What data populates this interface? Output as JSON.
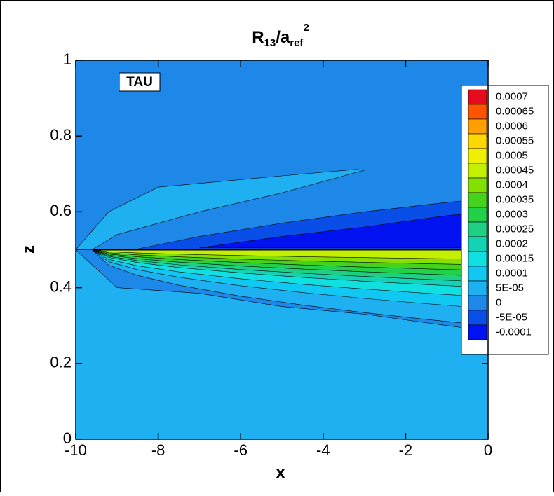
{
  "chart_data": {
    "type": "contour",
    "title": {
      "base": "R",
      "sub1": "13",
      "mid": "/a",
      "sub2": "ref",
      "sup": "2"
    },
    "annotation": "TAU",
    "x_label": "x",
    "y_label": "z",
    "xlim": [
      -10,
      0
    ],
    "xticks": [
      -10,
      -8,
      -6,
      -4,
      -2,
      0
    ],
    "ylim": [
      0,
      1
    ],
    "yticks": [
      0,
      0.2,
      0.4,
      0.6,
      0.8,
      1
    ],
    "levels": [
      {
        "value": 0.0007,
        "color": "#e60a1e"
      },
      {
        "value": 0.00065,
        "color": "#ff5500"
      },
      {
        "value": 0.0006,
        "color": "#ffa000"
      },
      {
        "value": 0.00055,
        "color": "#ffd800"
      },
      {
        "value": 0.0005,
        "color": "#eef000"
      },
      {
        "value": 0.00045,
        "color": "#c4f000"
      },
      {
        "value": 0.0004,
        "color": "#84e000"
      },
      {
        "value": 0.00035,
        "color": "#44d21c"
      },
      {
        "value": 0.0003,
        "color": "#22d04a"
      },
      {
        "value": 0.00025,
        "color": "#1ed084"
      },
      {
        "value": 0.0002,
        "color": "#14d2b4"
      },
      {
        "value": 0.00015,
        "color": "#12e0e0"
      },
      {
        "value": 0.0001,
        "color": "#10c8f2"
      },
      {
        "value": 5e-05,
        "label": "5E-05",
        "color": "#1eb0f0"
      },
      {
        "value": 0,
        "color": "#1e88e8"
      },
      {
        "value": -5e-05,
        "label": "-5E-05",
        "color": "#0a4ee8"
      },
      {
        "value": -0.0001,
        "color": "#0012f0"
      }
    ]
  }
}
